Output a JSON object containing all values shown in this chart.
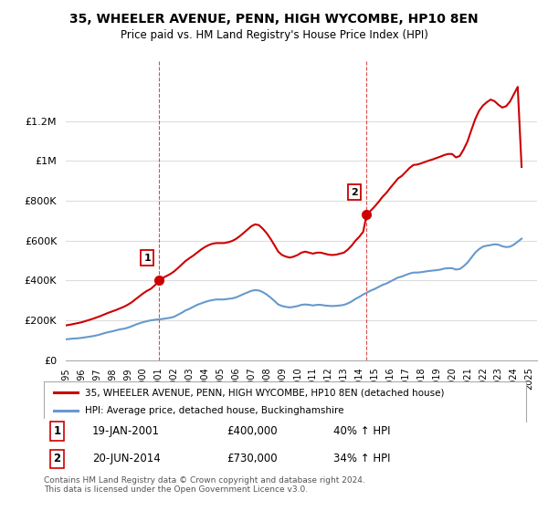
{
  "title": "35, WHEELER AVENUE, PENN, HIGH WYCOMBE, HP10 8EN",
  "subtitle": "Price paid vs. HM Land Registry's House Price Index (HPI)",
  "legend_line1": "35, WHEELER AVENUE, PENN, HIGH WYCOMBE, HP10 8EN (detached house)",
  "legend_line2": "HPI: Average price, detached house, Buckinghamshire",
  "footnote": "Contains HM Land Registry data © Crown copyright and database right 2024.\nThis data is licensed under the Open Government Licence v3.0.",
  "transaction1_label": "1",
  "transaction1_date": "19-JAN-2001",
  "transaction1_price": "£400,000",
  "transaction1_hpi": "40% ↑ HPI",
  "transaction1_year": 2001.05,
  "transaction1_value": 400000,
  "transaction2_label": "2",
  "transaction2_date": "20-JUN-2014",
  "transaction2_price": "£730,000",
  "transaction2_hpi": "34% ↑ HPI",
  "transaction2_year": 2014.47,
  "transaction2_value": 730000,
  "red_color": "#cc0000",
  "blue_color": "#6699cc",
  "dashed_color": "#cc0000",
  "background_color": "#ffffff",
  "grid_color": "#dddddd",
  "ylim": [
    0,
    1500000
  ],
  "xlim_start": 1995,
  "xlim_end": 2025.5,
  "yticks": [
    0,
    200000,
    400000,
    600000,
    800000,
    1000000,
    1200000
  ],
  "ytick_labels": [
    "£0",
    "£200K",
    "£400K",
    "£600K",
    "£800K",
    "£1M",
    "£1.2M"
  ],
  "hpi_data_x": [
    1995.0,
    1995.25,
    1995.5,
    1995.75,
    1996.0,
    1996.25,
    1996.5,
    1996.75,
    1997.0,
    1997.25,
    1997.5,
    1997.75,
    1998.0,
    1998.25,
    1998.5,
    1998.75,
    1999.0,
    1999.25,
    1999.5,
    1999.75,
    2000.0,
    2000.25,
    2000.5,
    2000.75,
    2001.0,
    2001.25,
    2001.5,
    2001.75,
    2002.0,
    2002.25,
    2002.5,
    2002.75,
    2003.0,
    2003.25,
    2003.5,
    2003.75,
    2004.0,
    2004.25,
    2004.5,
    2004.75,
    2005.0,
    2005.25,
    2005.5,
    2005.75,
    2006.0,
    2006.25,
    2006.5,
    2006.75,
    2007.0,
    2007.25,
    2007.5,
    2007.75,
    2008.0,
    2008.25,
    2008.5,
    2008.75,
    2009.0,
    2009.25,
    2009.5,
    2009.75,
    2010.0,
    2010.25,
    2010.5,
    2010.75,
    2011.0,
    2011.25,
    2011.5,
    2011.75,
    2012.0,
    2012.25,
    2012.5,
    2012.75,
    2013.0,
    2013.25,
    2013.5,
    2013.75,
    2014.0,
    2014.25,
    2014.5,
    2014.75,
    2015.0,
    2015.25,
    2015.5,
    2015.75,
    2016.0,
    2016.25,
    2016.5,
    2016.75,
    2017.0,
    2017.25,
    2017.5,
    2017.75,
    2018.0,
    2018.25,
    2018.5,
    2018.75,
    2019.0,
    2019.25,
    2019.5,
    2019.75,
    2020.0,
    2020.25,
    2020.5,
    2020.75,
    2021.0,
    2021.25,
    2021.5,
    2021.75,
    2022.0,
    2022.25,
    2022.5,
    2022.75,
    2023.0,
    2023.25,
    2023.5,
    2023.75,
    2024.0,
    2024.25,
    2024.5
  ],
  "hpi_data_y": [
    105000,
    107000,
    109000,
    110000,
    112000,
    115000,
    118000,
    121000,
    125000,
    130000,
    136000,
    141000,
    145000,
    150000,
    155000,
    158000,
    163000,
    170000,
    178000,
    185000,
    191000,
    196000,
    200000,
    203000,
    205000,
    207000,
    210000,
    213000,
    218000,
    228000,
    238000,
    250000,
    258000,
    268000,
    278000,
    285000,
    292000,
    298000,
    302000,
    305000,
    305000,
    305000,
    308000,
    310000,
    315000,
    323000,
    332000,
    340000,
    348000,
    352000,
    350000,
    342000,
    330000,
    315000,
    298000,
    280000,
    272000,
    268000,
    265000,
    268000,
    272000,
    278000,
    280000,
    278000,
    275000,
    278000,
    278000,
    275000,
    273000,
    272000,
    273000,
    275000,
    278000,
    285000,
    295000,
    308000,
    318000,
    330000,
    340000,
    350000,
    358000,
    368000,
    378000,
    385000,
    395000,
    405000,
    415000,
    420000,
    428000,
    435000,
    440000,
    440000,
    442000,
    445000,
    448000,
    450000,
    452000,
    455000,
    460000,
    462000,
    462000,
    455000,
    458000,
    472000,
    490000,
    515000,
    540000,
    558000,
    570000,
    575000,
    578000,
    582000,
    580000,
    572000,
    568000,
    570000,
    580000,
    595000,
    610000
  ],
  "price_data_x": [
    1995.0,
    1995.25,
    1995.5,
    1995.75,
    1996.0,
    1996.25,
    1996.5,
    1996.75,
    1997.0,
    1997.25,
    1997.5,
    1997.75,
    1998.0,
    1998.25,
    1998.5,
    1998.75,
    1999.0,
    1999.25,
    1999.5,
    1999.75,
    2000.0,
    2000.25,
    2000.5,
    2000.75,
    2001.05,
    2001.25,
    2001.5,
    2001.75,
    2002.0,
    2002.25,
    2002.5,
    2002.75,
    2003.0,
    2003.25,
    2003.5,
    2003.75,
    2004.0,
    2004.25,
    2004.5,
    2004.75,
    2005.0,
    2005.25,
    2005.5,
    2005.75,
    2006.0,
    2006.25,
    2006.5,
    2006.75,
    2007.0,
    2007.25,
    2007.5,
    2007.75,
    2008.0,
    2008.25,
    2008.5,
    2008.75,
    2009.0,
    2009.25,
    2009.5,
    2009.75,
    2010.0,
    2010.25,
    2010.5,
    2010.75,
    2011.0,
    2011.25,
    2011.5,
    2011.75,
    2012.0,
    2012.25,
    2012.5,
    2012.75,
    2013.0,
    2013.25,
    2013.5,
    2013.75,
    2014.0,
    2014.25,
    2014.47,
    2014.75,
    2015.0,
    2015.25,
    2015.5,
    2015.75,
    2016.0,
    2016.25,
    2016.5,
    2016.75,
    2017.0,
    2017.25,
    2017.5,
    2017.75,
    2018.0,
    2018.25,
    2018.5,
    2018.75,
    2019.0,
    2019.25,
    2019.5,
    2019.75,
    2020.0,
    2020.25,
    2020.5,
    2020.75,
    2021.0,
    2021.25,
    2021.5,
    2021.75,
    2022.0,
    2022.25,
    2022.5,
    2022.75,
    2023.0,
    2023.25,
    2023.5,
    2023.75,
    2024.0,
    2024.25,
    2024.5
  ],
  "price_data_y": [
    175000,
    178000,
    182000,
    186000,
    190000,
    196000,
    202000,
    208000,
    215000,
    222000,
    230000,
    238000,
    245000,
    252000,
    260000,
    268000,
    278000,
    290000,
    305000,
    320000,
    335000,
    348000,
    358000,
    375000,
    400000,
    412000,
    422000,
    432000,
    445000,
    462000,
    480000,
    498000,
    512000,
    525000,
    540000,
    555000,
    568000,
    578000,
    585000,
    588000,
    588000,
    588000,
    592000,
    598000,
    608000,
    622000,
    638000,
    655000,
    672000,
    682000,
    678000,
    660000,
    638000,
    610000,
    578000,
    545000,
    528000,
    520000,
    515000,
    520000,
    528000,
    540000,
    545000,
    540000,
    535000,
    540000,
    540000,
    535000,
    530000,
    528000,
    530000,
    535000,
    540000,
    555000,
    575000,
    600000,
    620000,
    645000,
    730000,
    752000,
    772000,
    795000,
    820000,
    840000,
    865000,
    888000,
    912000,
    925000,
    945000,
    965000,
    980000,
    982000,
    988000,
    995000,
    1002000,
    1008000,
    1015000,
    1022000,
    1030000,
    1035000,
    1035000,
    1018000,
    1025000,
    1058000,
    1098000,
    1155000,
    1210000,
    1252000,
    1278000,
    1295000,
    1308000,
    1300000,
    1282000,
    1268000,
    1275000,
    1298000,
    1335000,
    1372000,
    970000
  ]
}
